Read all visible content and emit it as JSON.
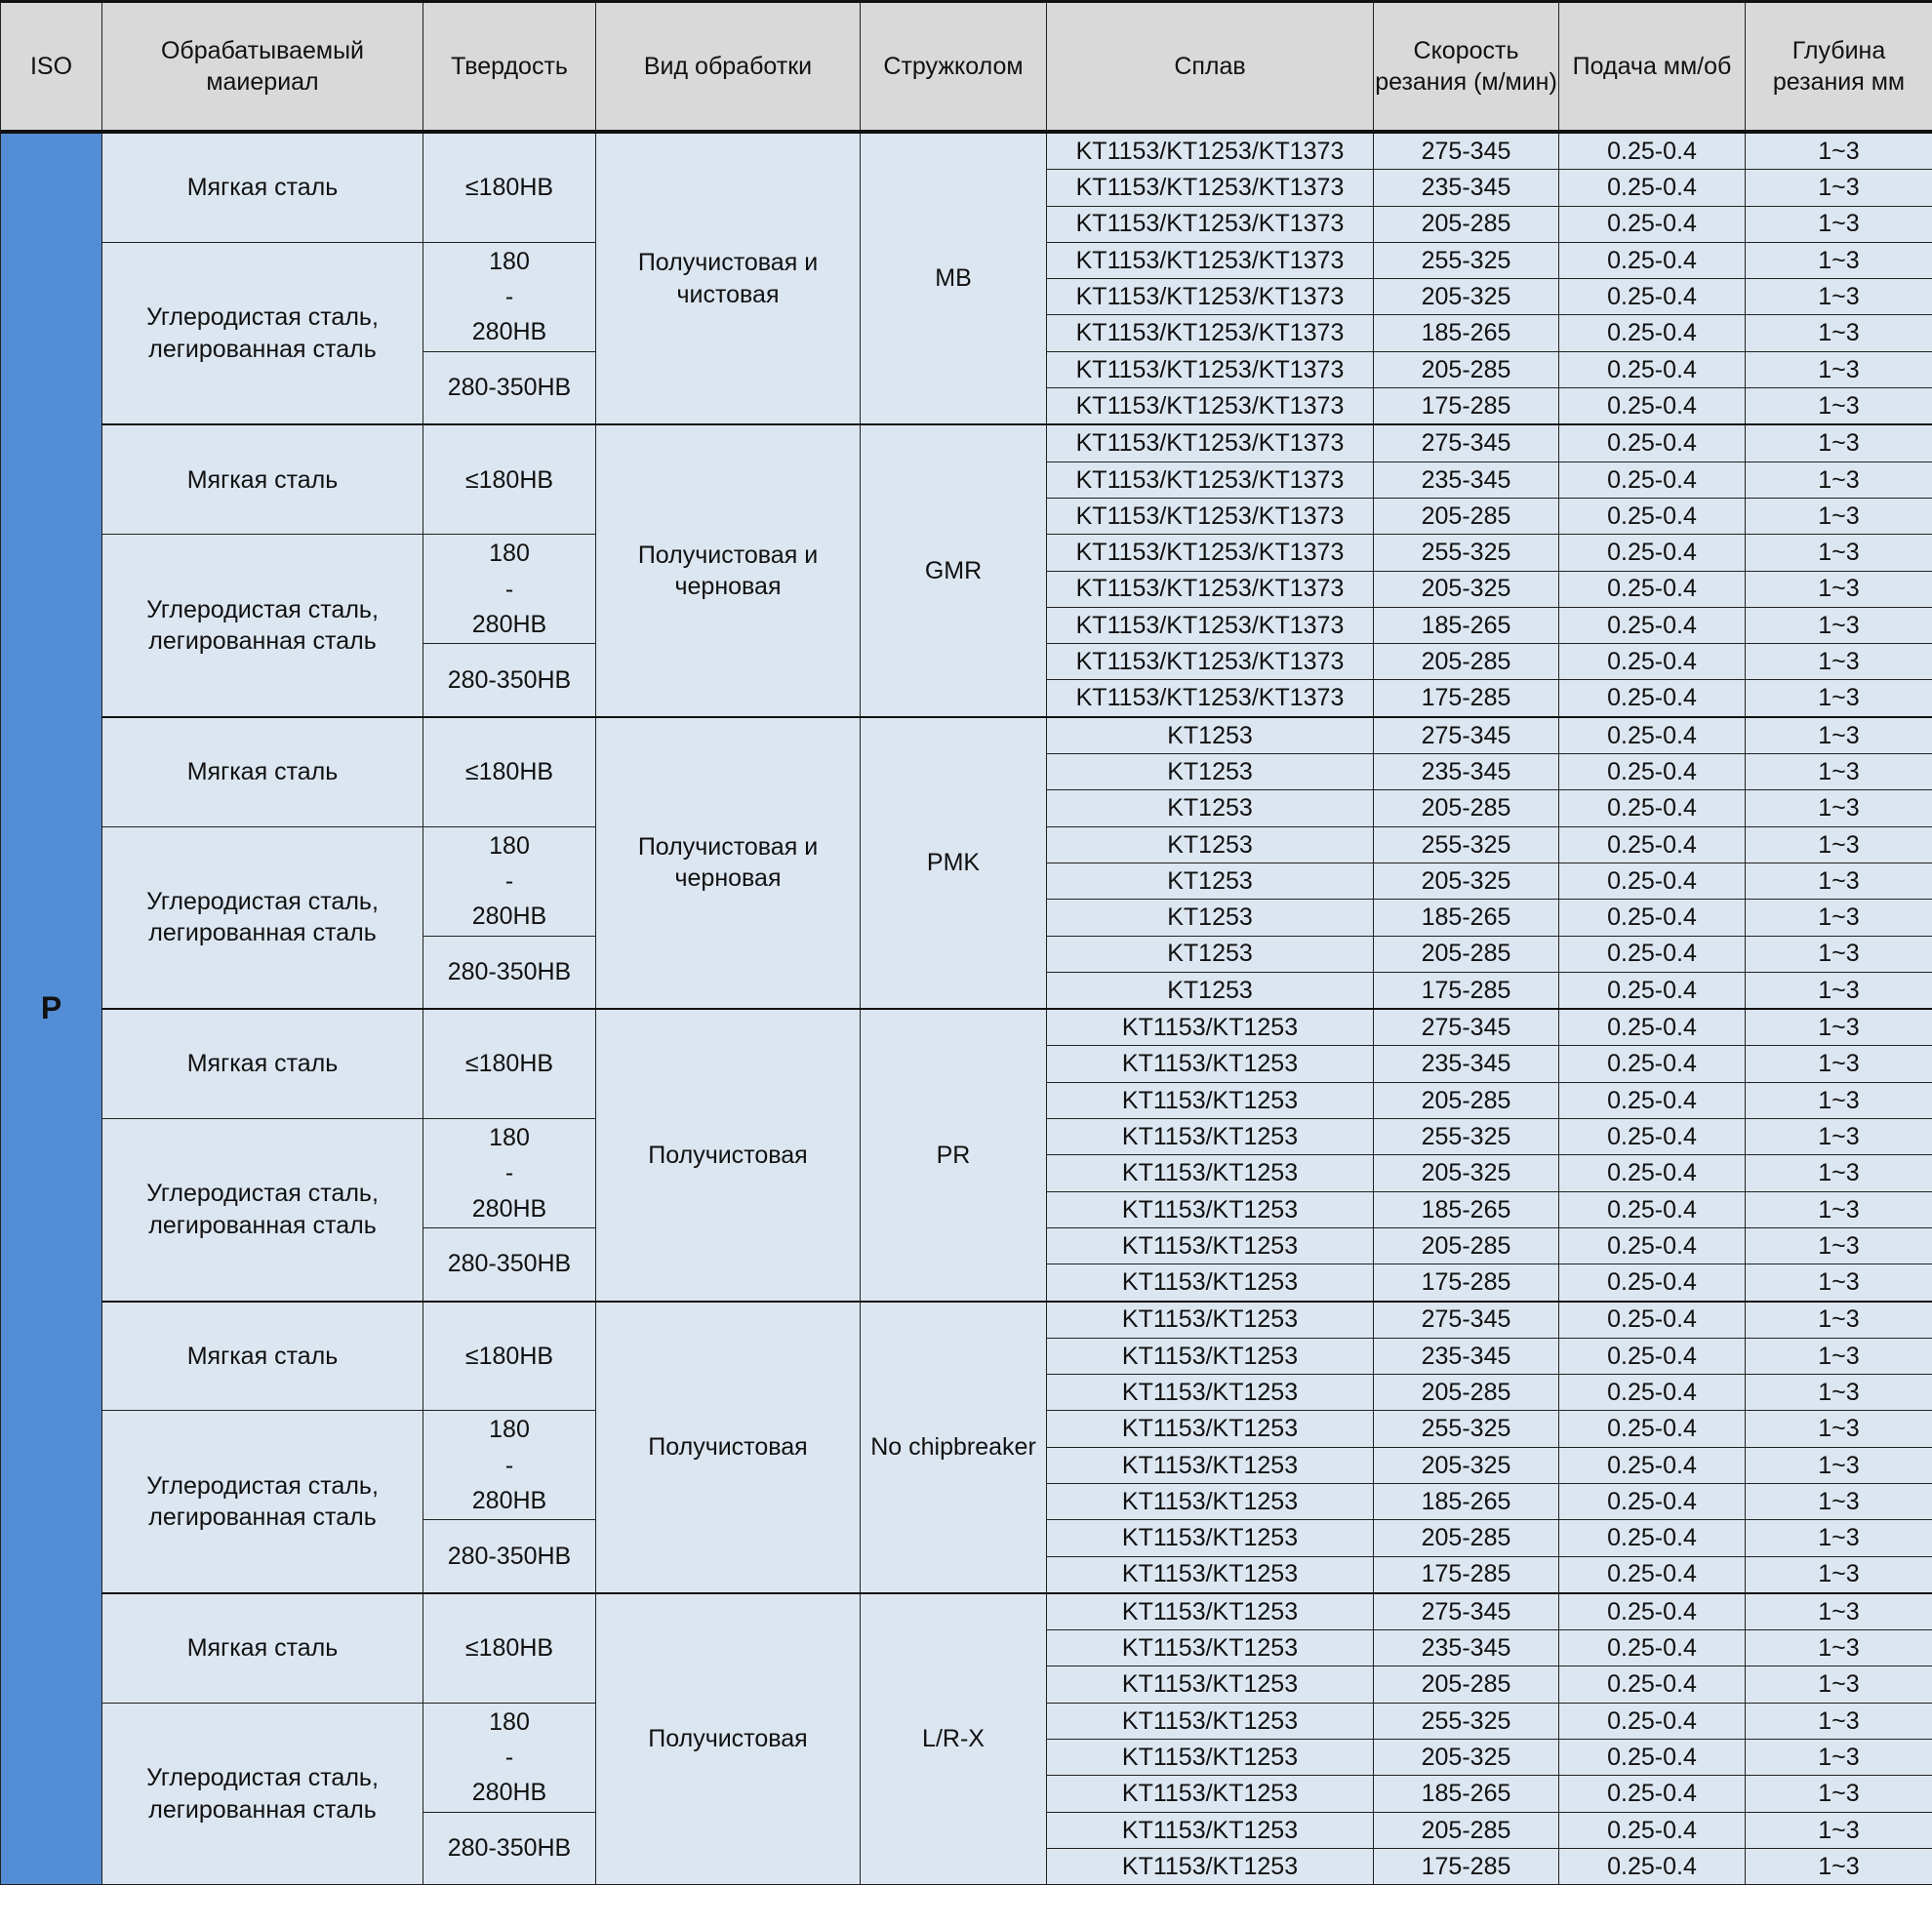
{
  "header": {
    "iso": "ISO",
    "material": "Обрабатываемый маиериал",
    "hardness": "Твердость",
    "process": "Вид обработки",
    "chipbreaker": "Стружколом",
    "alloy": "Сплав",
    "speed": "Скорость резания (м/мин)",
    "feed": "Подача мм/об",
    "depth": "Глубина резания мм"
  },
  "iso_group": "P",
  "materials": {
    "soft": "Мягкая сталь",
    "carbon": "Углеродистая сталь, легированная сталь"
  },
  "hardness": {
    "soft": "≤180HB",
    "mid_top": "180",
    "mid_dash": "-",
    "mid_bottom": "280HB",
    "hard": "280-350HB"
  },
  "speeds": [
    "275-345",
    "235-345",
    "205-285",
    "255-325",
    "205-325",
    "185-265",
    "205-285",
    "175-285"
  ],
  "feed": "0.25-0.4",
  "depth": "1~3",
  "groups": [
    {
      "chipbreaker": "MB",
      "process": "Получистовая и чистовая",
      "alloy": "KT1153/KT1253/KT1373"
    },
    {
      "chipbreaker": "GMR",
      "process": "Получистовая и черновая",
      "alloy": "KT1153/KT1253/KT1373"
    },
    {
      "chipbreaker": "PMK",
      "process": "Получистовая и черновая",
      "alloy": "KT1253"
    },
    {
      "chipbreaker": "PR",
      "process": "Получистовая",
      "alloy": "KT1153/KT1253"
    },
    {
      "chipbreaker": "No chipbreaker",
      "process": "Получистовая",
      "alloy": "KT1153/KT1253"
    },
    {
      "chipbreaker": "L/R-X",
      "process": "Получистовая",
      "alloy": "KT1153/KT1253"
    }
  ]
}
